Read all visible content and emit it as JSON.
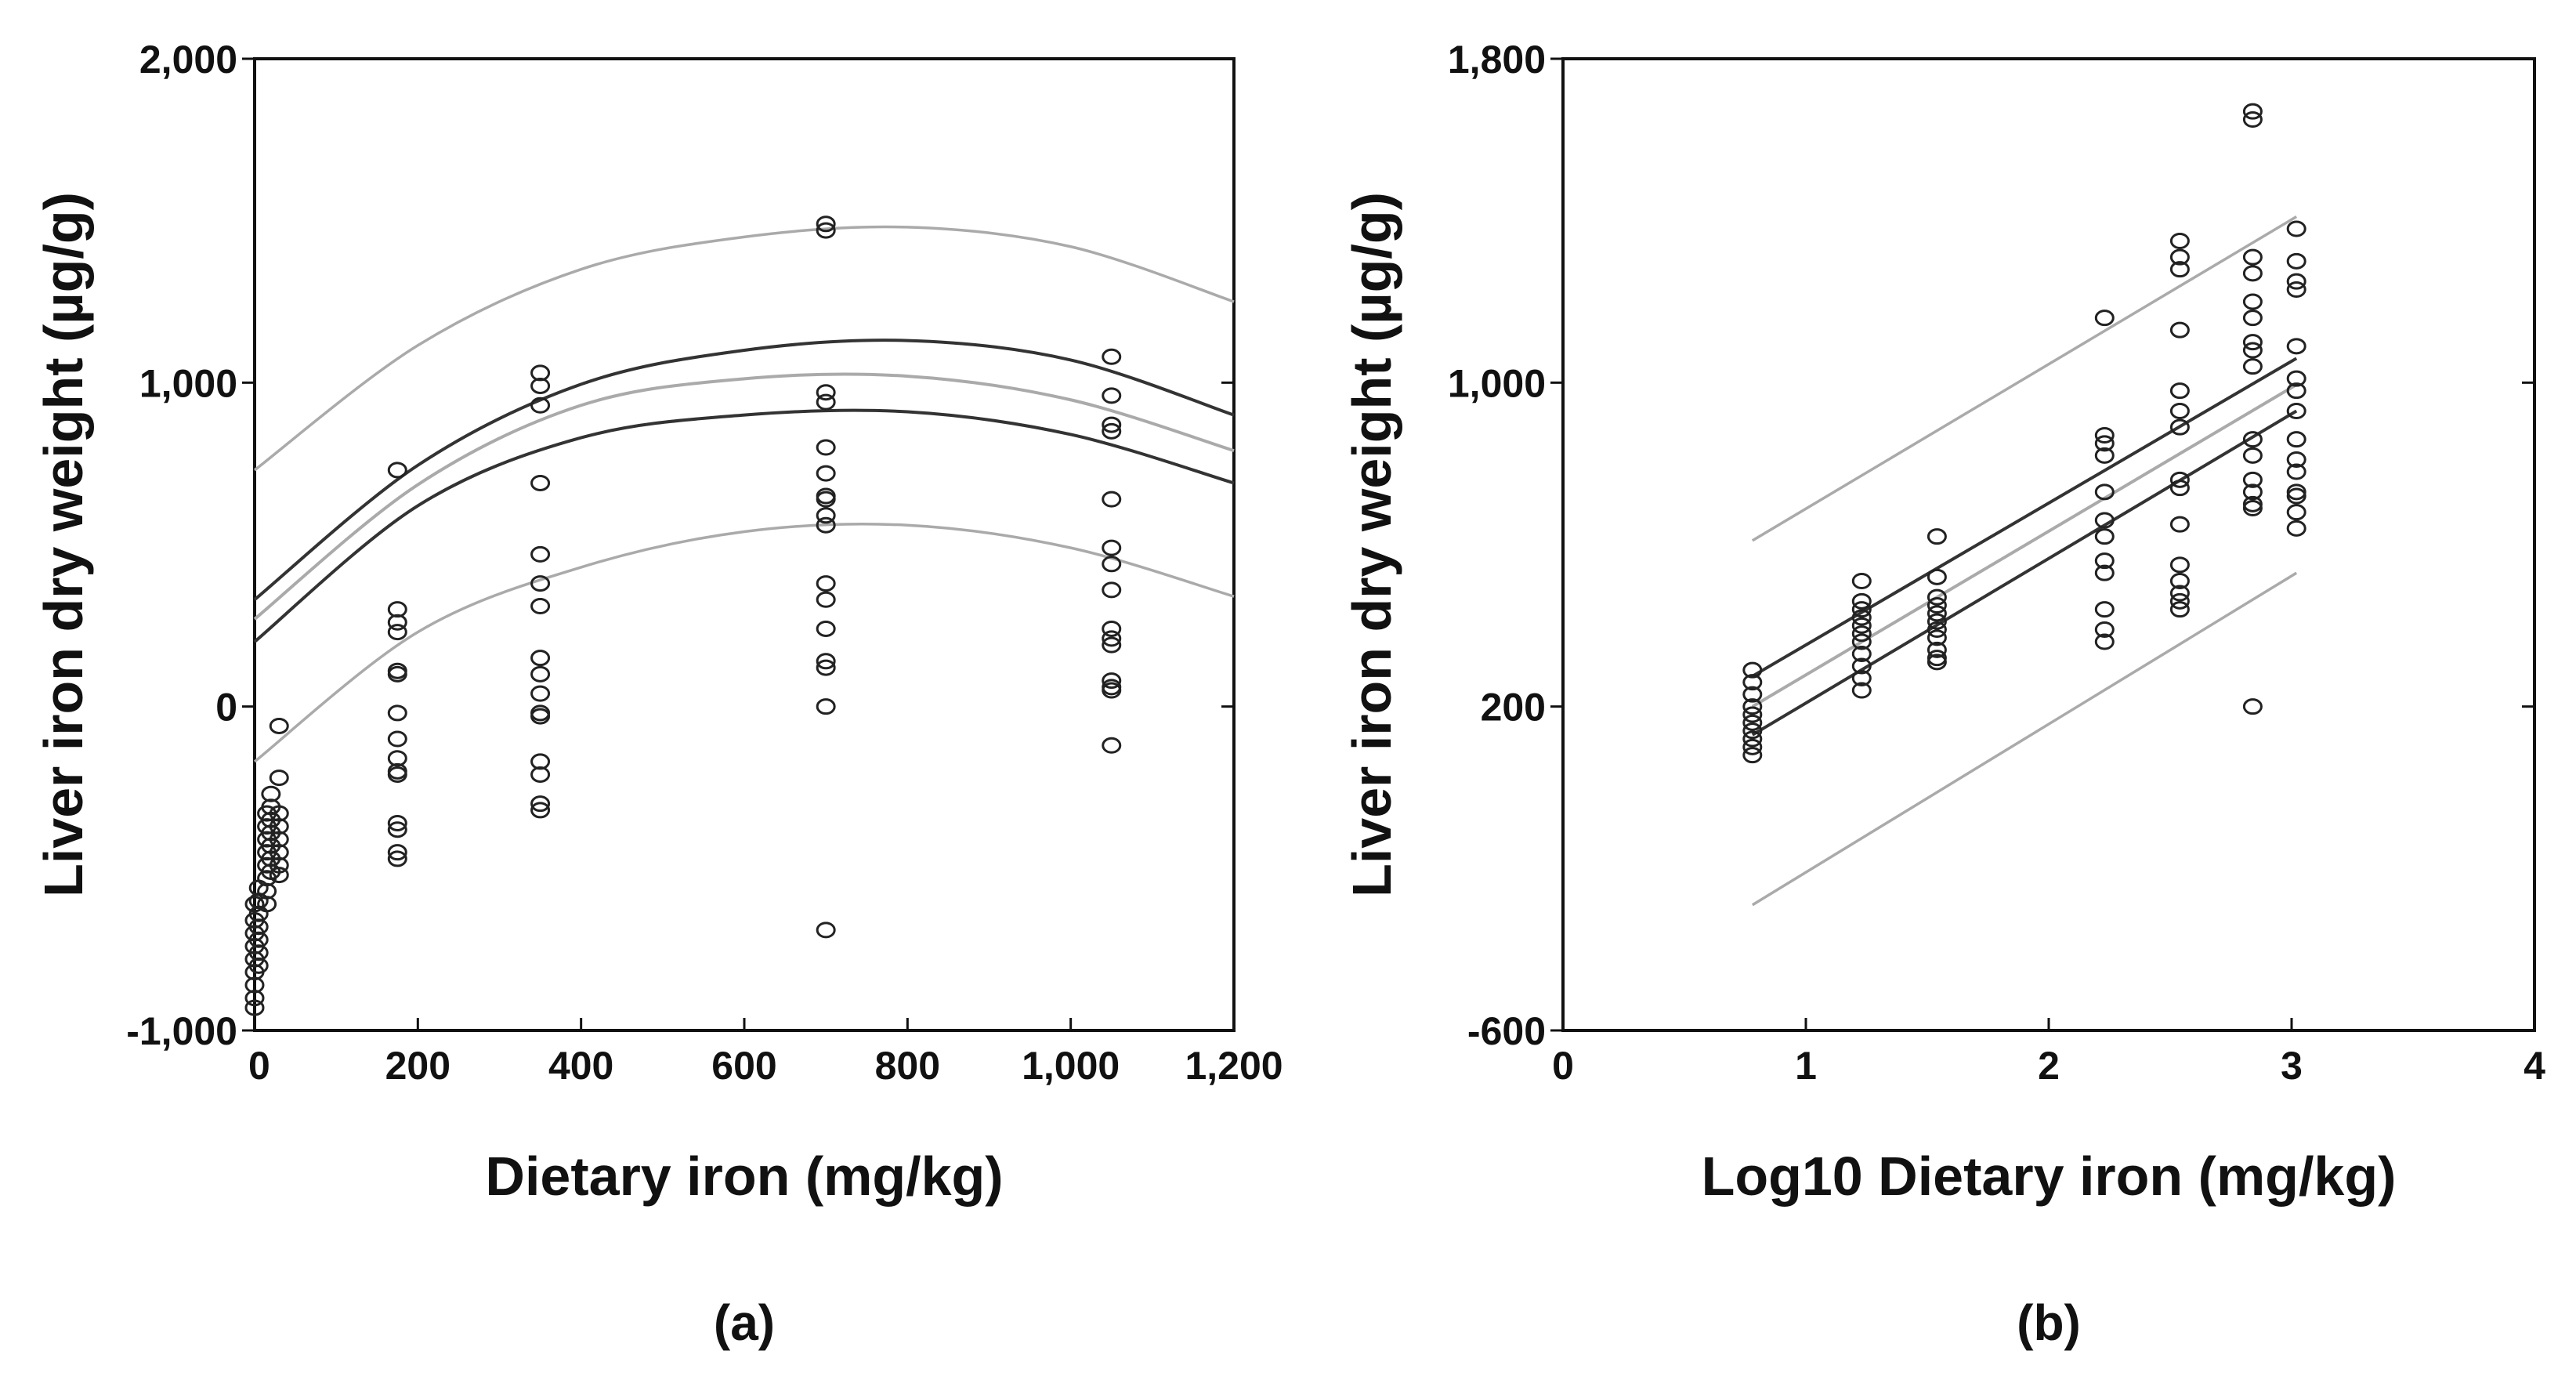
{
  "chart_data": [
    {
      "panel_label": "(a)",
      "type": "scatter",
      "xlabel": "Dietary iron (mg/kg)",
      "ylabel": "Liver iron dry weight (µg/g)",
      "xlim": [
        0,
        1200
      ],
      "ylim": [
        -1000,
        2000
      ],
      "xticks": [
        0,
        200,
        400,
        600,
        800,
        1000,
        1200
      ],
      "xtick_labels": [
        "0",
        "200",
        "400",
        "600",
        "800",
        "1,000",
        "1,200"
      ],
      "yticks": [
        -1000,
        0,
        1000,
        2000
      ],
      "ytick_labels": [
        "-1,000",
        "0",
        "1,000",
        "2,000"
      ],
      "grid": false,
      "colors": {
        "points": "#222222",
        "fit": "#333333",
        "mean_ci": "#333333",
        "prediction": "#aaaaaa"
      },
      "scatter": [
        {
          "x": 0,
          "y": [
            -610,
            -660,
            -700,
            -740,
            -780,
            -820,
            -860,
            -900,
            -930
          ]
        },
        {
          "x": 5,
          "y": [
            -560,
            -600,
            -640,
            -680,
            -720,
            -760,
            -800
          ]
        },
        {
          "x": 15,
          "y": [
            -330,
            -370,
            -410,
            -450,
            -490,
            -530,
            -570,
            -610
          ]
        },
        {
          "x": 20,
          "y": [
            -270,
            -310,
            -350,
            -390,
            -430,
            -470,
            -510
          ]
        },
        {
          "x": 30,
          "y": [
            -60,
            -220,
            -330,
            -370,
            -410,
            -450,
            -490,
            -520
          ]
        },
        {
          "x": 175,
          "y": [
            730,
            300,
            260,
            230,
            110,
            100,
            -20,
            -100,
            -160,
            -200,
            -210,
            -360,
            -380,
            -450,
            -470
          ]
        },
        {
          "x": 350,
          "y": [
            1030,
            990,
            930,
            690,
            470,
            380,
            310,
            150,
            100,
            40,
            -20,
            -30,
            -170,
            -210,
            -300,
            -320
          ]
        },
        {
          "x": 700,
          "y": [
            1490,
            1470,
            970,
            940,
            800,
            720,
            650,
            640,
            590,
            560,
            380,
            330,
            240,
            140,
            120,
            0,
            -690
          ]
        },
        {
          "x": 1050,
          "y": [
            1080,
            960,
            870,
            850,
            640,
            490,
            440,
            360,
            240,
            210,
            190,
            80,
            60,
            50,
            -120
          ]
        }
      ],
      "curves": [
        {
          "name": "fit",
          "x": [
            0,
            200,
            400,
            600,
            800,
            1000,
            1200
          ],
          "y": [
            270,
            685,
            930,
            1012,
            1020,
            947,
            790
          ]
        },
        {
          "name": "mean-ci-upper",
          "x": [
            0,
            200,
            400,
            600,
            800,
            1000,
            1200
          ],
          "y": [
            330,
            745,
            995,
            1100,
            1130,
            1070,
            900
          ]
        },
        {
          "name": "mean-ci-lower",
          "x": [
            0,
            200,
            400,
            600,
            800,
            1000,
            1200
          ],
          "y": [
            200,
            620,
            830,
            900,
            910,
            840,
            690
          ]
        },
        {
          "name": "prediction-upper",
          "x": [
            0,
            200,
            400,
            600,
            800,
            1000,
            1200
          ],
          "y": [
            730,
            1115,
            1350,
            1450,
            1480,
            1420,
            1250
          ]
        },
        {
          "name": "prediction-lower",
          "x": [
            0,
            200,
            400,
            600,
            800,
            1000,
            1200
          ],
          "y": [
            -170,
            230,
            430,
            540,
            560,
            490,
            340
          ]
        }
      ]
    },
    {
      "panel_label": "(b)",
      "type": "scatter",
      "xlabel": "Log10 Dietary iron (mg/kg)",
      "ylabel": "Liver iron dry weight (µg/g)",
      "xlim": [
        0,
        4
      ],
      "ylim": [
        -600,
        1800
      ],
      "xticks": [
        0,
        1,
        2,
        3,
        4
      ],
      "xtick_labels": [
        "0",
        "1",
        "2",
        "3",
        "4"
      ],
      "yticks": [
        -600,
        200,
        1000,
        1800
      ],
      "ytick_labels": [
        "-600",
        "200",
        "1,000",
        "1,800"
      ],
      "grid": false,
      "colors": {
        "points": "#222222",
        "fit": "#333333",
        "mean_ci": "#333333",
        "prediction": "#aaaaaa"
      },
      "scatter": [
        {
          "x": 0.78,
          "y": [
            290,
            260,
            230,
            200,
            180,
            160,
            140,
            120,
            100,
            80
          ]
        },
        {
          "x": 1.23,
          "y": [
            510,
            460,
            440,
            420,
            400,
            380,
            360,
            330,
            300,
            270,
            240
          ]
        },
        {
          "x": 1.54,
          "y": [
            620,
            520,
            470,
            450,
            430,
            410,
            390,
            370,
            340,
            320,
            310
          ]
        },
        {
          "x": 2.23,
          "y": [
            1160,
            870,
            850,
            820,
            730,
            660,
            620,
            560,
            530,
            440,
            390,
            360
          ]
        },
        {
          "x": 2.54,
          "y": [
            1350,
            1310,
            1280,
            1130,
            980,
            930,
            890,
            760,
            740,
            650,
            550,
            510,
            480,
            460,
            440
          ]
        },
        {
          "x": 2.84,
          "y": [
            1670,
            1650,
            1310,
            1270,
            1200,
            1160,
            1100,
            1080,
            1040,
            860,
            820,
            760,
            730,
            700,
            690,
            200
          ]
        },
        {
          "x": 3.02,
          "y": [
            1380,
            1300,
            1250,
            1230,
            1090,
            1010,
            980,
            930,
            860,
            810,
            780,
            730,
            720,
            680,
            640
          ]
        }
      ],
      "curves": [
        {
          "name": "fit",
          "x": [
            0.78,
            3.02
          ],
          "y": [
            200,
            995
          ]
        },
        {
          "name": "mean-ci-upper",
          "x": [
            0.78,
            3.02
          ],
          "y": [
            275,
            1060
          ]
        },
        {
          "name": "mean-ci-lower",
          "x": [
            0.78,
            3.02
          ],
          "y": [
            130,
            930
          ]
        },
        {
          "name": "prediction-upper",
          "x": [
            0.78,
            3.02
          ],
          "y": [
            610,
            1410
          ]
        },
        {
          "name": "prediction-lower",
          "x": [
            0.78,
            3.02
          ],
          "y": [
            -290,
            530
          ]
        }
      ]
    }
  ]
}
